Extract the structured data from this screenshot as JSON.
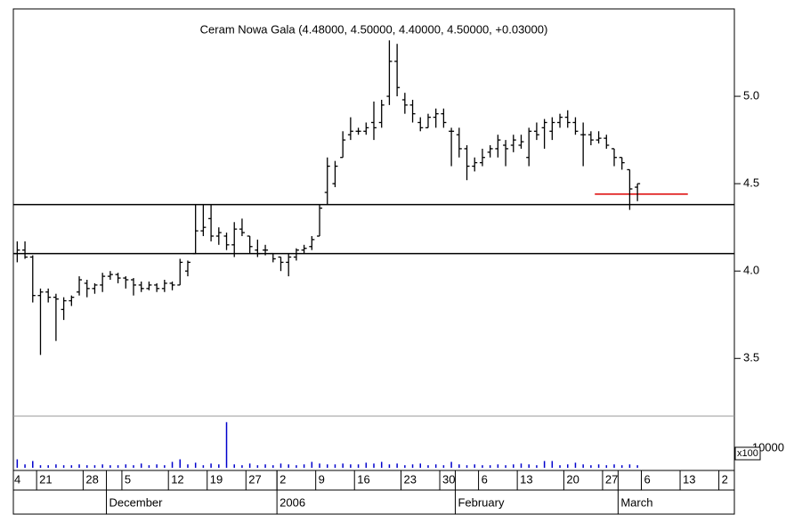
{
  "chart_data": {
    "type": "ohlc",
    "title": "Ceram Nowa Gala (4.48000, 4.50000, 4.40000, 4.50000, +0.03000)",
    "color": "#000000",
    "volume_color": "#0000cc",
    "ylim": [
      3.17,
      5.5
    ],
    "yticks": [
      3.5,
      {
        "value": 4,
        "label": "4.0"
      },
      4.5,
      {
        "value": 5,
        "label": "5.0"
      }
    ],
    "volume_ylim": [
      0,
      29000
    ],
    "volume_ticks": [
      10000
    ],
    "volume_unit": "x100",
    "lines": [
      {
        "value": 4.38,
        "color": "#000000"
      },
      {
        "value": 4.1,
        "color": "#000000"
      },
      {
        "value": 4.44,
        "color": "#dd0000",
        "start": 75,
        "end": 87
      }
    ],
    "categories": [
      "4",
      null,
      null,
      "21",
      null,
      null,
      null,
      null,
      null,
      "28",
      null,
      null,
      null,
      null,
      "5",
      null,
      null,
      null,
      null,
      null,
      "12",
      null,
      null,
      null,
      null,
      "19",
      null,
      null,
      null,
      null,
      "27",
      null,
      null,
      null,
      "2",
      null,
      null,
      null,
      null,
      "9",
      null,
      null,
      null,
      null,
      "16",
      null,
      null,
      null,
      null,
      null,
      "23",
      null,
      null,
      null,
      null,
      "30",
      null,
      null,
      null,
      null,
      "6",
      null,
      null,
      null,
      null,
      "13",
      null,
      null,
      null,
      null,
      null,
      "20",
      null,
      null,
      null,
      null,
      "27",
      null,
      null,
      null,
      null,
      "6",
      null,
      null,
      null,
      null,
      "13",
      null,
      null,
      null,
      null,
      "2",
      null
    ],
    "months": [
      {
        "label": "December",
        "category": 12
      },
      {
        "label": "2006",
        "category": 34
      },
      {
        "label": "February",
        "category": 57
      },
      {
        "label": "March",
        "category": 78
      }
    ],
    "values": [
      [
        4.1,
        4.17,
        4.05,
        4.12
      ],
      [
        4.12,
        4.17,
        4.07,
        4.08
      ],
      [
        4.08,
        4.09,
        3.82,
        3.86
      ],
      [
        3.86,
        3.9,
        3.52,
        3.88
      ],
      [
        3.88,
        3.9,
        3.82,
        3.85
      ],
      [
        3.85,
        3.87,
        3.6,
        3.84
      ],
      [
        3.78,
        3.85,
        3.72,
        3.83
      ],
      [
        3.83,
        3.86,
        3.8,
        3.85
      ],
      [
        3.88,
        3.97,
        3.86,
        3.95
      ],
      [
        3.93,
        3.95,
        3.85,
        3.9
      ],
      [
        3.9,
        3.93,
        3.87,
        3.92
      ],
      [
        3.92,
        3.99,
        3.88,
        3.97
      ],
      [
        3.97,
        4.0,
        3.95,
        3.98
      ],
      [
        3.98,
        3.99,
        3.93,
        3.96
      ],
      [
        3.96,
        3.97,
        3.9,
        3.95
      ],
      [
        3.95,
        3.96,
        3.86,
        3.92
      ],
      [
        3.92,
        3.94,
        3.88,
        3.9
      ],
      [
        3.9,
        3.94,
        3.89,
        3.92
      ],
      [
        3.92,
        3.93,
        3.88,
        3.9
      ],
      [
        3.9,
        3.95,
        3.88,
        3.93
      ],
      [
        3.93,
        3.94,
        3.89,
        3.92
      ],
      [
        3.92,
        4.07,
        3.92,
        4.05
      ],
      [
        4.0,
        4.06,
        3.97,
        4.05
      ],
      [
        4.1,
        4.38,
        4.1,
        4.23
      ],
      [
        4.23,
        4.38,
        4.2,
        4.25
      ],
      [
        4.3,
        4.38,
        4.17,
        4.2
      ],
      [
        4.2,
        4.25,
        4.15,
        4.22
      ],
      [
        4.2,
        4.22,
        4.12,
        4.15
      ],
      [
        4.15,
        4.28,
        4.08,
        4.24
      ],
      [
        4.24,
        4.3,
        4.2,
        4.22
      ],
      [
        4.2,
        4.2,
        4.1,
        4.14
      ],
      [
        4.12,
        4.18,
        4.08,
        4.1
      ],
      [
        4.12,
        4.15,
        4.09,
        4.12
      ],
      [
        4.1,
        4.1,
        4.05,
        4.07
      ],
      [
        4.08,
        4.08,
        4.0,
        4.05
      ],
      [
        4.05,
        4.1,
        3.97,
        4.08
      ],
      [
        4.08,
        4.13,
        4.06,
        4.12
      ],
      [
        4.12,
        4.15,
        4.1,
        4.13
      ],
      [
        4.14,
        4.2,
        4.12,
        4.18
      ],
      [
        4.2,
        4.38,
        4.2,
        4.36
      ],
      [
        4.45,
        4.65,
        4.38,
        4.6
      ],
      [
        4.5,
        4.63,
        4.48,
        4.6
      ],
      [
        4.65,
        4.8,
        4.65,
        4.75
      ],
      [
        4.78,
        4.88,
        4.75,
        4.8
      ],
      [
        4.8,
        4.82,
        4.78,
        4.8
      ],
      [
        4.8,
        4.85,
        4.78,
        4.82
      ],
      [
        4.85,
        4.97,
        4.75,
        4.82
      ],
      [
        4.85,
        4.98,
        4.82,
        4.95
      ],
      [
        5.0,
        5.32,
        4.95,
        5.2
      ],
      [
        5.2,
        5.3,
        5.0,
        5.05
      ],
      [
        4.98,
        5.02,
        4.9,
        4.95
      ],
      [
        4.95,
        4.98,
        4.85,
        4.9
      ],
      [
        4.85,
        4.88,
        4.8,
        4.82
      ],
      [
        4.82,
        4.9,
        4.82,
        4.88
      ],
      [
        4.88,
        4.93,
        4.82,
        4.9
      ],
      [
        4.9,
        4.93,
        4.82,
        4.85
      ],
      [
        4.8,
        4.82,
        4.6,
        4.8
      ],
      [
        4.78,
        4.82,
        4.65,
        4.7
      ],
      [
        4.7,
        4.72,
        4.52,
        4.6
      ],
      [
        4.6,
        4.65,
        4.57,
        4.62
      ],
      [
        4.62,
        4.7,
        4.6,
        4.65
      ],
      [
        4.68,
        4.72,
        4.65,
        4.7
      ],
      [
        4.7,
        4.78,
        4.65,
        4.75
      ],
      [
        4.72,
        4.75,
        4.6,
        4.7
      ],
      [
        4.72,
        4.78,
        4.68,
        4.75
      ],
      [
        4.72,
        4.78,
        4.7,
        4.74
      ],
      [
        4.65,
        4.82,
        4.6,
        4.8
      ],
      [
        4.8,
        4.85,
        4.75,
        4.78
      ],
      [
        4.82,
        4.87,
        4.7,
        4.85
      ],
      [
        4.8,
        4.88,
        4.75,
        4.85
      ],
      [
        4.85,
        4.9,
        4.82,
        4.88
      ],
      [
        4.88,
        4.92,
        4.82,
        4.85
      ],
      [
        4.85,
        4.88,
        4.78,
        4.8
      ],
      [
        4.78,
        4.85,
        4.6,
        4.78
      ],
      [
        4.78,
        4.8,
        4.72,
        4.75
      ],
      [
        4.75,
        4.8,
        4.73,
        4.76
      ],
      [
        4.76,
        4.78,
        4.7,
        4.72
      ],
      [
        4.7,
        4.7,
        4.6,
        4.65
      ],
      [
        4.65,
        4.65,
        4.58,
        4.62
      ],
      [
        4.58,
        4.58,
        4.35,
        4.47
      ],
      [
        4.48,
        4.5,
        4.4,
        4.5
      ],
      null,
      null,
      null,
      null,
      null,
      null,
      null,
      null,
      null,
      null,
      null,
      null
    ],
    "volume": [
      5000,
      2000,
      4000,
      1500,
      1500,
      2000,
      1500,
      1500,
      2000,
      1500,
      1500,
      2000,
      1500,
      1500,
      2000,
      1500,
      2500,
      1500,
      2000,
      1500,
      3500,
      5000,
      2000,
      3000,
      1500,
      2500,
      2000,
      27000,
      2000,
      1500,
      2500,
      1500,
      2000,
      1500,
      2500,
      2000,
      1500,
      2000,
      3500,
      2500,
      2000,
      2000,
      2500,
      2000,
      2000,
      3000,
      2500,
      3500,
      2000,
      2500,
      1500,
      2000,
      2500,
      1500,
      2000,
      1500,
      3500,
      2000,
      1500,
      2000,
      1500,
      1500,
      2000,
      1500,
      2000,
      2500,
      2000,
      1500,
      4000,
      4000,
      1500,
      2000,
      3000,
      2000,
      1500,
      2000,
      1500,
      2000,
      1500,
      2000,
      1500,
      null,
      null,
      null,
      null,
      null,
      null,
      null,
      null,
      null,
      null,
      null,
      null
    ]
  }
}
